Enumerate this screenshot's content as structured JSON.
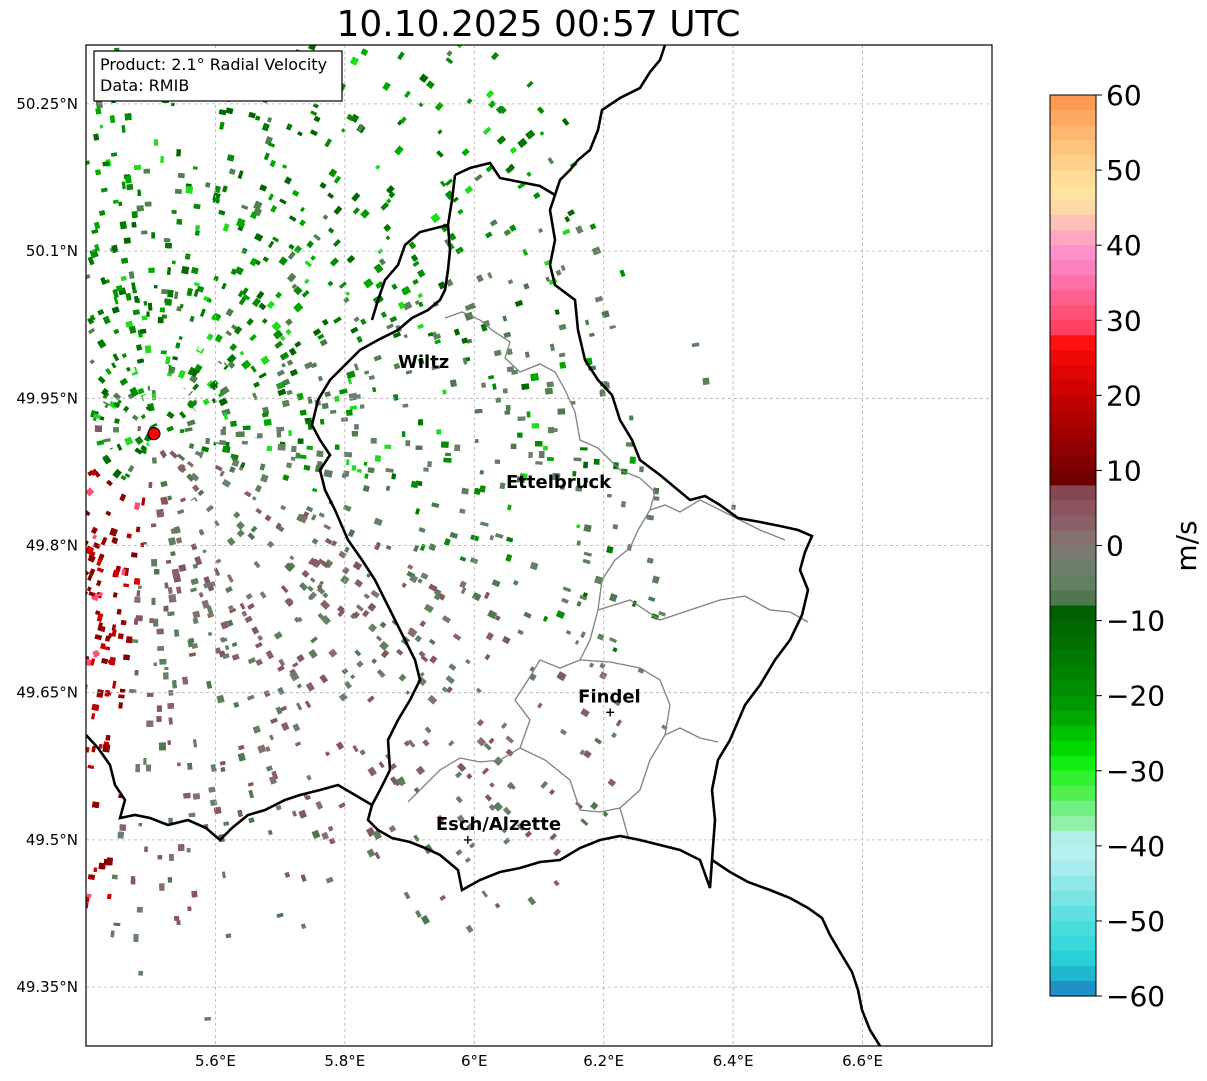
{
  "title": "10.10.2025 00:57 UTC",
  "info": {
    "product": "Product: 2.1° Radial Velocity",
    "data": "Data: RMIB"
  },
  "map": {
    "lon_range": [
      5.4,
      6.8
    ],
    "lat_range": [
      49.29,
      50.31
    ],
    "lon_ticks": [
      {
        "value": 5.6,
        "label": "5.6°E"
      },
      {
        "value": 5.8,
        "label": "5.8°E"
      },
      {
        "value": 6.0,
        "label": "6°E"
      },
      {
        "value": 6.2,
        "label": "6.2°E"
      },
      {
        "value": 6.4,
        "label": "6.4°E"
      },
      {
        "value": 6.6,
        "label": "6.6°E"
      }
    ],
    "lat_ticks": [
      {
        "value": 50.25,
        "label": "50.25°N"
      },
      {
        "value": 50.1,
        "label": "50.1°N"
      },
      {
        "value": 49.95,
        "label": "49.95°N"
      },
      {
        "value": 49.8,
        "label": "49.8°N"
      },
      {
        "value": 49.65,
        "label": "49.65°N"
      },
      {
        "value": 49.5,
        "label": "49.5°N"
      },
      {
        "value": 49.35,
        "label": "49.35°N"
      }
    ],
    "cities": [
      {
        "name": "Wiltz",
        "lon": 5.94,
        "lat": 49.97,
        "marker": false
      },
      {
        "name": "Ettelbruck",
        "lon": 6.1,
        "lat": 49.85,
        "marker": false
      },
      {
        "name": "Findel",
        "lon": 6.21,
        "lat": 49.63,
        "marker": true
      },
      {
        "name": "Esch/Alzette",
        "lon": 5.99,
        "lat": 49.5,
        "marker": true
      }
    ],
    "radar_site": {
      "lon": 5.505,
      "lat": 49.914
    },
    "colors": {
      "outbound_dark": "#8b0000",
      "outbound_mid": "#d40000",
      "near_zero_pos": "#8a6068",
      "near_zero_neg": "#5e7e5e",
      "inbound_green": "#0a8a0a",
      "inbound_bright": "#1fdc1f",
      "border": "#000000"
    }
  },
  "colorbar": {
    "unit": "m/s",
    "ticks": [
      "60",
      "50",
      "40",
      "30",
      "20",
      "10",
      "0",
      "−10",
      "−20",
      "−30",
      "−40",
      "−50",
      "−60"
    ],
    "range": [
      -60,
      60
    ],
    "colors_top_to_bottom": [
      "#ff9a50",
      "#ffa860",
      "#ffb670",
      "#ffc47e",
      "#ffd08a",
      "#ffdc96",
      "#ffe3a0",
      "#ffd8a8",
      "#ffc0b8",
      "#ffa8c0",
      "#ff90c8",
      "#ff80c0",
      "#ff70a8",
      "#ff6090",
      "#ff5078",
      "#ff4060",
      "#ff1010",
      "#f00808",
      "#e00404",
      "#d00202",
      "#c00000",
      "#b00000",
      "#a00000",
      "#900000",
      "#800000",
      "#700000",
      "#844850",
      "#8c5460",
      "#8a6068",
      "#86706e",
      "#7a7a70",
      "#6a806a",
      "#608060",
      "#507850",
      "#006000",
      "#006800",
      "#007000",
      "#007a00",
      "#008400",
      "#008e00",
      "#009800",
      "#00a800",
      "#00c000",
      "#00d800",
      "#10f010",
      "#30f030",
      "#50f050",
      "#70f080",
      "#90f0a8",
      "#b0f0e8",
      "#b8f0f0",
      "#a8ecec",
      "#90e8e8",
      "#78e4e4",
      "#60e0e0",
      "#48dcdc",
      "#38d8dc",
      "#28d0d8",
      "#20b8d0",
      "#2090c8"
    ]
  }
}
